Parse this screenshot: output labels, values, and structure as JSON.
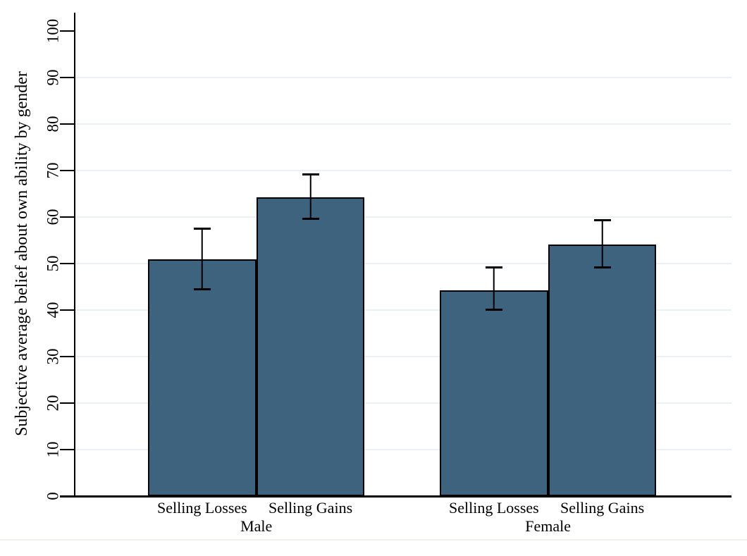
{
  "chart_data": {
    "type": "bar",
    "title": "",
    "xlabel": "",
    "ylabel": "Subjective average belief about own ability by gender",
    "ylim": [
      0,
      100
    ],
    "yticks": [
      0,
      10,
      20,
      30,
      40,
      50,
      60,
      70,
      80,
      90,
      100
    ],
    "grid_values": [
      10,
      20,
      30,
      40,
      50,
      60,
      70,
      80,
      90
    ],
    "grid": "horizontal",
    "legend_position": "none",
    "groups": [
      {
        "label": "Male",
        "bars": [
          {
            "label": "Selling Losses",
            "value": 50.9,
            "ci_low": 44.2,
            "ci_high": 57.7
          },
          {
            "label": "Selling Gains",
            "value": 64.3,
            "ci_low": 59.4,
            "ci_high": 69.4
          }
        ]
      },
      {
        "label": "Female",
        "bars": [
          {
            "label": "Selling Losses",
            "value": 44.3,
            "ci_low": 39.8,
            "ci_high": 49.4
          },
          {
            "label": "Selling Gains",
            "value": 54.1,
            "ci_low": 48.9,
            "ci_high": 59.5
          }
        ]
      }
    ],
    "colors": {
      "bar_fill": "#3e637e",
      "bar_border": "#000000",
      "error": "#000000",
      "grid": "#e9f1f3",
      "axis": "#000000",
      "background": "#ffffff"
    }
  }
}
